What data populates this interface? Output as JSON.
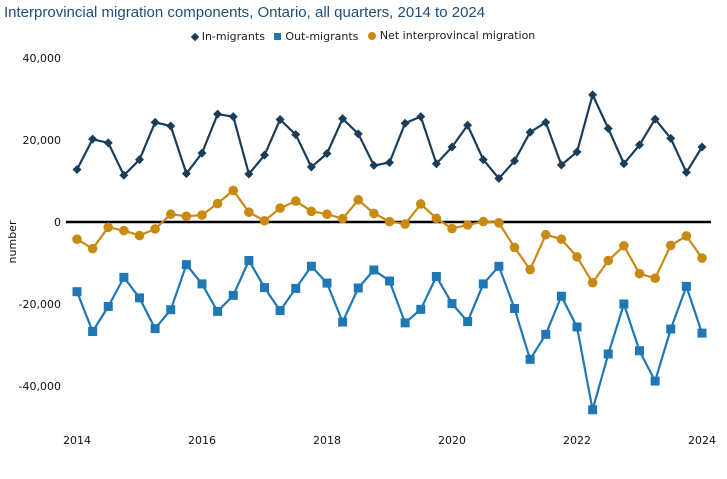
{
  "chart_data": {
    "type": "line",
    "title": "Interprovincial migration components, Ontario, all quarters, 2014 to 2024",
    "ylabel": "number",
    "xlabel": "",
    "ylim": [
      -50000,
      40000
    ],
    "xlim": [
      2014,
      2024
    ],
    "yticks": [
      {
        "value": 40000,
        "label": "40,000"
      },
      {
        "value": 20000,
        "label": "20,000"
      },
      {
        "value": 0,
        "label": "0"
      },
      {
        "value": -20000,
        "label": "-20,000"
      },
      {
        "value": -40000,
        "label": "-40,000"
      }
    ],
    "xticks": [
      {
        "value": 2014,
        "label": "2014"
      },
      {
        "value": 2016,
        "label": "2016"
      },
      {
        "value": 2018,
        "label": "2018"
      },
      {
        "value": 2020,
        "label": "2020"
      },
      {
        "value": 2022,
        "label": "2022"
      },
      {
        "value": 2024,
        "label": "2024"
      }
    ],
    "grid": false,
    "legend_position": "top-center",
    "x": [
      2014.0,
      2014.25,
      2014.5,
      2014.75,
      2015.0,
      2015.25,
      2015.5,
      2015.75,
      2016.0,
      2016.25,
      2016.5,
      2016.75,
      2017.0,
      2017.25,
      2017.5,
      2017.75,
      2018.0,
      2018.25,
      2018.5,
      2018.75,
      2019.0,
      2019.25,
      2019.5,
      2019.75,
      2020.0,
      2020.25,
      2020.5,
      2020.75,
      2021.0,
      2021.25,
      2021.5,
      2021.75,
      2022.0,
      2022.25,
      2022.5,
      2022.75,
      2023.0,
      2023.25,
      2023.5,
      2023.75,
      2024.0
    ],
    "series": [
      {
        "name": "In-migrants",
        "color": "#1a3d5a",
        "marker": "diamond",
        "values": [
          12800,
          20200,
          19300,
          11400,
          15200,
          24300,
          23400,
          11800,
          16800,
          26300,
          25700,
          11700,
          16300,
          25000,
          21300,
          13400,
          16700,
          25200,
          21500,
          13800,
          14500,
          24100,
          25700,
          14200,
          18300,
          23600,
          15200,
          10600,
          14900,
          21900,
          24300,
          13900,
          17100,
          31000,
          22800,
          14200,
          18800,
          25100,
          20400,
          12100,
          18300
        ]
      },
      {
        "name": "Out-migrants",
        "color": "#1f77b4",
        "marker": "square",
        "values": [
          -17000,
          -26700,
          -20600,
          -13500,
          -18500,
          -26000,
          -21400,
          -10400,
          -15100,
          -21800,
          -17900,
          -9400,
          -16000,
          -21600,
          -16200,
          -10800,
          -14900,
          -24400,
          -16100,
          -11700,
          -14400,
          -24600,
          -21300,
          -13300,
          -19900,
          -24300,
          -15100,
          -10800,
          -21100,
          -33500,
          -27400,
          -18100,
          -25600,
          -45800,
          -32200,
          -20000,
          -31400,
          -38800,
          -26100,
          -15700,
          -27100
        ]
      },
      {
        "name": "Net interprovincal migration",
        "color": "#c88a12",
        "marker": "circle",
        "values": [
          -4200,
          -6500,
          -1300,
          -2100,
          -3300,
          -1700,
          1900,
          1400,
          1700,
          4500,
          7700,
          2400,
          300,
          3400,
          5100,
          2600,
          1900,
          800,
          5400,
          2100,
          100,
          -500,
          4400,
          900,
          -1600,
          -700,
          100,
          -200,
          -6200,
          -11600,
          -3100,
          -4200,
          -8500,
          -14800,
          -9400,
          -5800,
          -12600,
          -13700,
          -5700,
          -3400,
          -8800
        ]
      }
    ]
  }
}
